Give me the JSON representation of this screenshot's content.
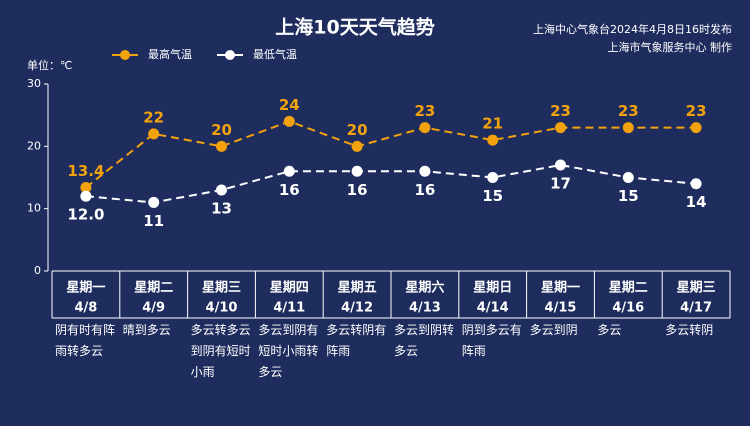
{
  "chart_data": {
    "type": "line",
    "title": "上海10天天气趋势",
    "source": "上海中心气象台2024年4月8日16时发布",
    "maker": "上海市气象服务中心 制作",
    "unit": "单位：℃",
    "weekdays": [
      "星期一",
      "星期二",
      "星期三",
      "星期四",
      "星期五",
      "星期六",
      "星期日",
      "星期一",
      "星期二",
      "星期三"
    ],
    "categories": [
      "4/8",
      "4/9",
      "4/10",
      "4/11",
      "4/12",
      "4/13",
      "4/14",
      "4/15",
      "4/16",
      "4/17"
    ],
    "descriptions": [
      "阴有时有阵雨转多云",
      "晴到多云",
      "多云转多云到阴有短时小雨",
      "多云到阴有短时小雨转多云",
      "多云转阴有阵雨",
      "多云到阴转多云",
      "阴到多云有阵雨",
      "多云到阴",
      "多云",
      "多云转阴"
    ],
    "series": [
      {
        "name": "最高气温",
        "color": "#f2a20c",
        "values": [
          13.4,
          22,
          20,
          24,
          20,
          23,
          21,
          23,
          23,
          23
        ]
      },
      {
        "name": "最低气温",
        "color": "#ffffff",
        "values": [
          12,
          11,
          13,
          16,
          16,
          16,
          15,
          17,
          15,
          14
        ],
        "value_labels": [
          "12.0",
          "11",
          "13",
          "16",
          "16",
          "16",
          "15",
          "17",
          "15",
          "14"
        ]
      }
    ],
    "ylim": [
      0,
      30
    ],
    "yticks": [
      0,
      10,
      20,
      30
    ],
    "grid": false
  }
}
